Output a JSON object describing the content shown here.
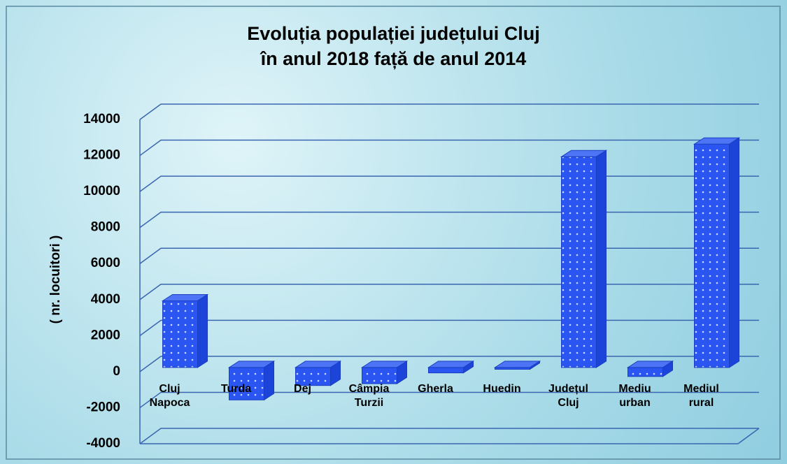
{
  "chart_data": {
    "type": "bar3d",
    "title": "Evoluția populației județului Cluj\nîn anul 2018 față de anul 2014",
    "y_label": "( nr. locuitori )",
    "categories": [
      "Cluj Napoca",
      "Turda",
      "Dej",
      "Câmpia Turzii",
      "Gherla",
      "Huedin",
      "Județul Cluj",
      "Mediu urban",
      "Mediul rural"
    ],
    "values": [
      3700,
      -1800,
      -1000,
      -900,
      -300,
      -100,
      11700,
      -500,
      12400
    ],
    "color": "#2a55f0",
    "ylim": [
      -4000,
      14000
    ],
    "yticks": [
      -4000,
      -2000,
      0,
      2000,
      4000,
      6000,
      8000,
      10000,
      12000,
      14000
    ],
    "grid": true
  }
}
